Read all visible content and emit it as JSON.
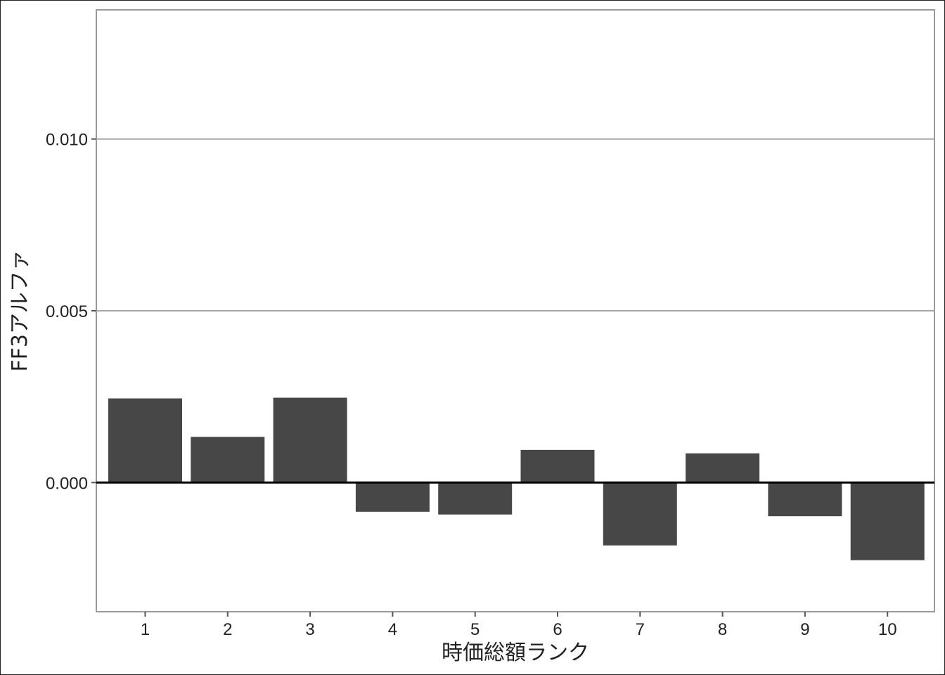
{
  "chart_data": {
    "type": "bar",
    "categories": [
      "1",
      "2",
      "3",
      "4",
      "5",
      "6",
      "7",
      "8",
      "9",
      "10"
    ],
    "values": [
      0.00245,
      0.00133,
      0.00247,
      -0.00085,
      -0.00093,
      0.00095,
      -0.00183,
      0.00085,
      -0.00098,
      -0.00226
    ],
    "xlabel": "時価総額ランク",
    "ylabel": "FF3アルファ",
    "ylim": [
      -0.00376,
      0.01376
    ],
    "yticks": [
      0.0,
      0.005,
      0.01
    ],
    "ytick_labels": [
      "0.000",
      "0.005",
      "0.010"
    ],
    "grid": "horizontal",
    "bar_color": "#474747",
    "zero_line_color": "#000000",
    "grid_color": "#a6a6a6"
  }
}
